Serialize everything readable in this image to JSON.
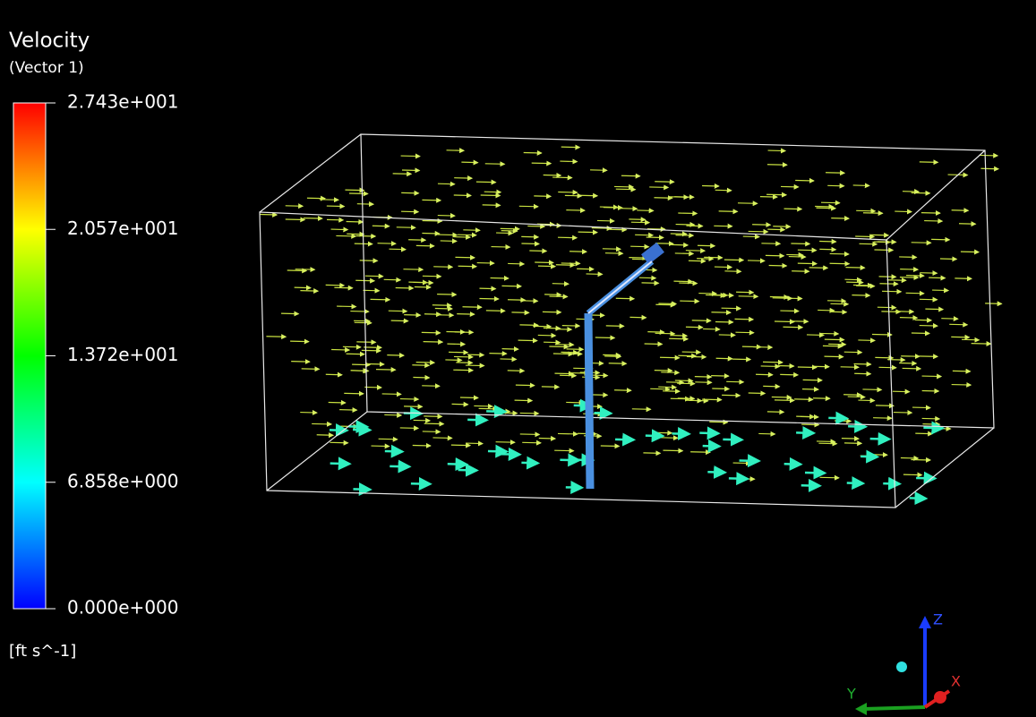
{
  "legend": {
    "title": "Velocity",
    "subtitle": "(Vector 1)",
    "labels": [
      "2.743e+001",
      "2.057e+001",
      "1.372e+001",
      "6.858e+000",
      "0.000e+000"
    ],
    "units": "[ft s^-1]"
  },
  "axes": {
    "z": "Z",
    "y": "Y",
    "x": "X"
  }
}
